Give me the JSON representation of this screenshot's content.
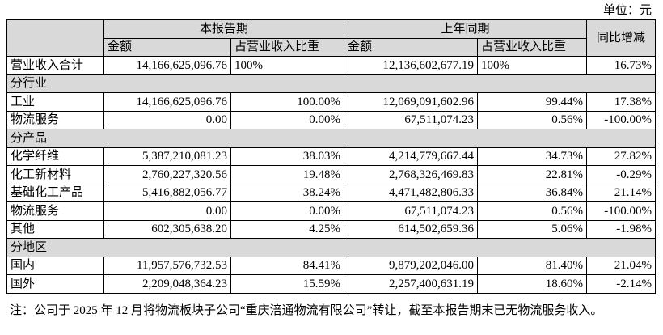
{
  "header": {
    "unit": "单位：元"
  },
  "table": {
    "groups": [
      "本报告期",
      "上年同期",
      "同比增减"
    ],
    "subheaders": [
      "金额",
      "占营业收入比重",
      "金额",
      "占营业收入比重"
    ],
    "rows": [
      {
        "label": "营业收入合计",
        "cells": [
          "14,166,625,096.76",
          "100%",
          "12,136,602,677.19",
          "100%",
          "16.73%"
        ]
      },
      {
        "section": "分行业"
      },
      {
        "label": "工业",
        "cells": [
          "14,166,625,096.76",
          "100.00%",
          "12,069,091,602.96",
          "99.44%",
          "17.38%"
        ]
      },
      {
        "label": "物流服务",
        "cells": [
          "0.00",
          "0.00%",
          "67,511,074.23",
          "0.56%",
          "-100.00%"
        ]
      },
      {
        "section": "分产品"
      },
      {
        "label": "化学纤维",
        "cells": [
          "5,387,210,081.23",
          "38.03%",
          "4,214,779,667.44",
          "34.73%",
          "27.82%"
        ]
      },
      {
        "label": "化工新材料",
        "cells": [
          "2,760,227,320.56",
          "19.48%",
          "2,768,326,469.83",
          "22.81%",
          "-0.29%"
        ]
      },
      {
        "label": "基础化工产品",
        "cells": [
          "5,416,882,056.77",
          "38.24%",
          "4,471,482,806.33",
          "36.84%",
          "21.14%"
        ]
      },
      {
        "label": "物流服务",
        "cells": [
          "0.00",
          "0.00%",
          "67,511,074.23",
          "0.56%",
          "-100.00%"
        ]
      },
      {
        "label": "其他",
        "cells": [
          "602,305,638.20",
          "4.25%",
          "614,502,659.36",
          "5.06%",
          "-1.98%"
        ]
      },
      {
        "section": "分地区"
      },
      {
        "label": "国内",
        "cells": [
          "11,957,576,732.53",
          "84.41%",
          "9,879,202,046.00",
          "81.40%",
          "21.04%"
        ]
      },
      {
        "label": "国外",
        "cells": [
          "2,209,048,364.23",
          "15.59%",
          "2,257,400,631.19",
          "18.60%",
          "-2.14%"
        ]
      }
    ]
  },
  "note": "注：公司于 2025 年 12 月将物流板块子公司“重庆涪通物流有限公司”转让，截至本报告期末已无物流服务收入。"
}
